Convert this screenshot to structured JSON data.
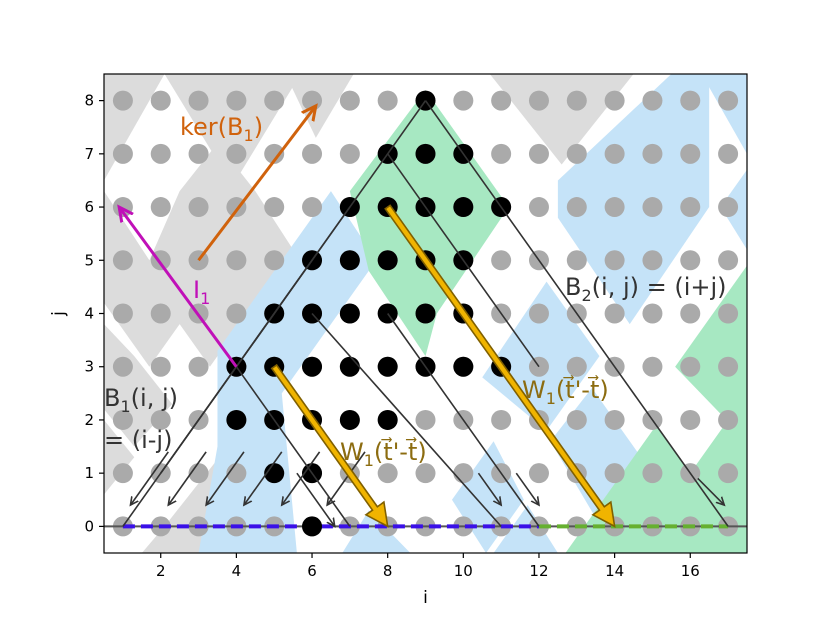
{
  "chart_data": {
    "type": "scatter",
    "xlabel": "i",
    "ylabel": "j",
    "xlim": [
      0.5,
      17.5
    ],
    "ylim": [
      -0.5,
      8.5
    ],
    "x_ticks": [
      "2",
      "4",
      "6",
      "8",
      "10",
      "12",
      "14",
      "16"
    ],
    "y_ticks": [
      "0",
      "1",
      "2",
      "3",
      "4",
      "5",
      "6",
      "7",
      "8"
    ],
    "grid": false,
    "colors": {
      "gray_region": "#dcdcdc",
      "blue_region": "#c5e3f8",
      "green_region": "#a7e8c2",
      "gray_point": "#aaaaaa",
      "black_point": "#000000",
      "line": "#333333",
      "ker_arrow": "#d0620c",
      "i1_arrow": "#c010b8",
      "w_arrow_fill": "#f0b400",
      "w_arrow_edge": "#806000",
      "blue_dash": "#3a10e8",
      "green_dash": "#66b030",
      "ann_text": "#333333",
      "w_text": "#8c6c10"
    },
    "gray_points": {
      "i_range": [
        1,
        17
      ],
      "j_range": [
        0,
        8
      ]
    },
    "black_points": [
      [
        9,
        8
      ],
      [
        8,
        7
      ],
      [
        9,
        7
      ],
      [
        10,
        7
      ],
      [
        7,
        6
      ],
      [
        8,
        6
      ],
      [
        9,
        6
      ],
      [
        10,
        6
      ],
      [
        11,
        6
      ],
      [
        6,
        5
      ],
      [
        7,
        5
      ],
      [
        8,
        5
      ],
      [
        9,
        5
      ],
      [
        10,
        5
      ],
      [
        5,
        4
      ],
      [
        6,
        4
      ],
      [
        7,
        4
      ],
      [
        8,
        4
      ],
      [
        9,
        4
      ],
      [
        10,
        4
      ],
      [
        4,
        3
      ],
      [
        5,
        3
      ],
      [
        6,
        3
      ],
      [
        7,
        3
      ],
      [
        8,
        3
      ],
      [
        9,
        3
      ],
      [
        10,
        3
      ],
      [
        11,
        3
      ],
      [
        4,
        2
      ],
      [
        5,
        2
      ],
      [
        6,
        2
      ],
      [
        7,
        2
      ],
      [
        8,
        2
      ],
      [
        5,
        1
      ],
      [
        6,
        1
      ],
      [
        6,
        0
      ]
    ],
    "lines": [
      [
        [
          9,
          8
        ],
        [
          1,
          0
        ]
      ],
      [
        [
          9,
          8
        ],
        [
          17,
          0
        ]
      ],
      [
        [
          8,
          7
        ],
        [
          12,
          3
        ]
      ],
      [
        [
          6,
          5
        ],
        [
          2,
          1
        ]
      ],
      [
        [
          7,
          6
        ],
        [
          2,
          1
        ]
      ],
      [
        [
          4,
          3
        ],
        [
          7,
          0
        ]
      ],
      [
        [
          6,
          4
        ],
        [
          11,
          0
        ]
      ],
      [
        [
          8,
          4
        ],
        [
          12,
          0
        ]
      ]
    ],
    "down_arrows": [
      [
        [
          2.2,
          1.4
        ],
        [
          1.2,
          0.4
        ]
      ],
      [
        [
          3.2,
          1.4
        ],
        [
          2.2,
          0.4
        ]
      ],
      [
        [
          4.2,
          1.4
        ],
        [
          3.2,
          0.4
        ]
      ],
      [
        [
          5.2,
          1.4
        ],
        [
          4.2,
          0.4
        ]
      ],
      [
        [
          6.2,
          1.4
        ],
        [
          5.2,
          0.4
        ]
      ],
      [
        [
          7.4,
          1.4
        ],
        [
          6.4,
          0.4
        ]
      ],
      [
        [
          5.6,
          1.0
        ],
        [
          6.6,
          0.0
        ]
      ],
      [
        [
          10.4,
          1.0
        ],
        [
          11.0,
          0.4
        ]
      ],
      [
        [
          11.4,
          1.0
        ],
        [
          12.0,
          0.4
        ]
      ],
      [
        [
          16.2,
          0.9
        ],
        [
          16.9,
          0.4
        ]
      ]
    ],
    "arrows": [
      {
        "name": "ker",
        "from": [
          3.0,
          5.0
        ],
        "to": [
          6.1,
          7.9
        ]
      },
      {
        "name": "i1",
        "from": [
          4.0,
          3.0
        ],
        "to": [
          0.9,
          6.0
        ]
      },
      {
        "name": "w1a",
        "from": [
          5.0,
          3.0
        ],
        "to": [
          8.0,
          0.0
        ]
      },
      {
        "name": "w1b",
        "from": [
          8.0,
          6.0
        ],
        "to": [
          14.0,
          0.0
        ]
      }
    ],
    "dash_segments": [
      {
        "name": "blue",
        "from": 1,
        "to": 12
      },
      {
        "name": "green",
        "from": 12,
        "to": 17
      }
    ],
    "annotations": {
      "ker_base": "ker(B",
      "ker_sub": "1",
      "ker_close": ")",
      "i_base": "I",
      "i_sub": "1",
      "b2_base": "B",
      "b2_sub": "2",
      "b2_rest": "(i, j) = (i+j)",
      "b1_base": "B",
      "b1_sub": "1",
      "b1_rest": "(i, j)",
      "b1_line2": "= (i-j)",
      "w_base": "W",
      "w_sub": "1",
      "w_a_rest": "(t⃗'-t⃗)",
      "w_b_rest": "(t⃗'-t⃗)"
    }
  }
}
